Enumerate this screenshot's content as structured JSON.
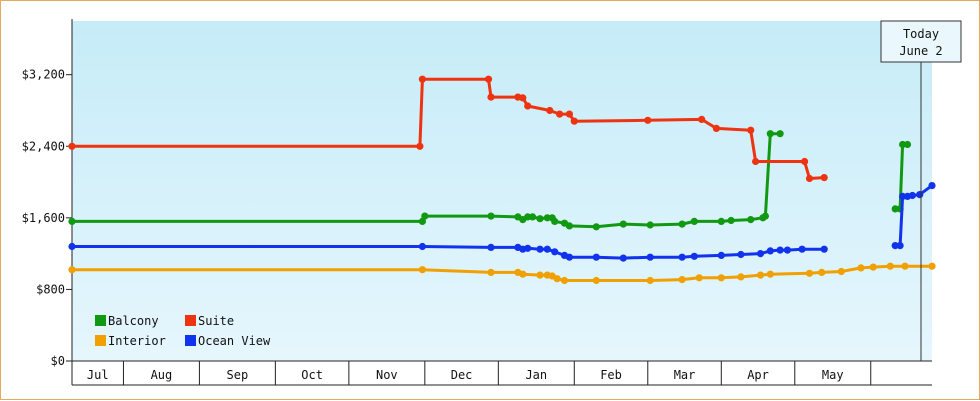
{
  "chart_data": {
    "type": "line",
    "title": "",
    "xlabel": "",
    "ylabel": "",
    "ylim": [
      0,
      3800
    ],
    "xlim": [
      "2023-06-24",
      "2024-06-09"
    ],
    "y_ticks": [
      0,
      800,
      1600,
      2400,
      3200
    ],
    "y_tick_labels": [
      "$0",
      "$800",
      "$1,600",
      "$2,400",
      "$3,200"
    ],
    "x_months": [
      {
        "label": "Jul",
        "start": "2023-06-24",
        "end": "2023-07-15"
      },
      {
        "label": "Aug",
        "start": "2023-07-15",
        "end": "2023-08-15"
      },
      {
        "label": "Sep",
        "start": "2023-08-15",
        "end": "2023-09-15"
      },
      {
        "label": "Oct",
        "start": "2023-09-15",
        "end": "2023-10-15"
      },
      {
        "label": "Nov",
        "start": "2023-10-15",
        "end": "2023-11-15"
      },
      {
        "label": "Dec",
        "start": "2023-11-15",
        "end": "2023-12-15"
      },
      {
        "label": "Jan",
        "start": "2023-12-15",
        "end": "2024-01-15"
      },
      {
        "label": "Feb",
        "start": "2024-01-15",
        "end": "2024-02-14"
      },
      {
        "label": "Mar",
        "start": "2024-02-14",
        "end": "2024-03-15"
      },
      {
        "label": "Apr",
        "start": "2024-03-15",
        "end": "2024-04-14"
      },
      {
        "label": "May",
        "start": "2024-04-14",
        "end": "2024-05-15"
      },
      {
        "label": "",
        "start": "2024-05-15",
        "end": "2024-06-09"
      }
    ],
    "grid": false,
    "legend_position": "bottom-left",
    "today": {
      "line1": "Today",
      "line2": "June 2",
      "date": "2024-06-02"
    },
    "series": [
      {
        "name": "Balcony",
        "color": "#119911",
        "segments": [
          [
            [
              "2023-06-24",
              1560
            ],
            [
              "2023-11-14",
              1560
            ],
            [
              "2023-11-15",
              1620
            ],
            [
              "2023-12-12",
              1620
            ],
            [
              "2023-12-23",
              1610
            ],
            [
              "2023-12-25",
              1580
            ],
            [
              "2023-12-27",
              1610
            ],
            [
              "2023-12-29",
              1610
            ],
            [
              "2024-01-01",
              1590
            ],
            [
              "2024-01-04",
              1600
            ],
            [
              "2024-01-06",
              1600
            ],
            [
              "2024-01-07",
              1560
            ],
            [
              "2024-01-11",
              1540
            ],
            [
              "2024-01-13",
              1510
            ],
            [
              "2024-01-24",
              1500
            ],
            [
              "2024-02-04",
              1530
            ],
            [
              "2024-02-15",
              1520
            ],
            [
              "2024-02-28",
              1530
            ],
            [
              "2024-03-04",
              1560
            ],
            [
              "2024-03-15",
              1560
            ],
            [
              "2024-03-19",
              1570
            ],
            [
              "2024-03-27",
              1580
            ],
            [
              "2024-04-01",
              1600
            ],
            [
              "2024-04-02",
              1620
            ],
            [
              "2024-04-04",
              2540
            ],
            [
              "2024-04-08",
              2540
            ]
          ],
          [
            [
              "2024-05-25",
              1700
            ],
            [
              "2024-05-27",
              1700
            ],
            [
              "2024-05-28",
              2420
            ],
            [
              "2024-05-30",
              2420
            ]
          ]
        ]
      },
      {
        "name": "Suite",
        "color": "#ee3311",
        "segments": [
          [
            [
              "2023-06-24",
              2400
            ],
            [
              "2023-11-13",
              2400
            ],
            [
              "2023-11-14",
              3150
            ],
            [
              "2023-12-11",
              3150
            ],
            [
              "2023-12-12",
              2950
            ],
            [
              "2023-12-23",
              2950
            ],
            [
              "2023-12-25",
              2940
            ],
            [
              "2023-12-27",
              2850
            ],
            [
              "2024-01-05",
              2800
            ],
            [
              "2024-01-09",
              2760
            ],
            [
              "2024-01-13",
              2760
            ],
            [
              "2024-01-15",
              2680
            ],
            [
              "2024-02-14",
              2690
            ],
            [
              "2024-03-07",
              2700
            ],
            [
              "2024-03-13",
              2600
            ],
            [
              "2024-03-27",
              2580
            ],
            [
              "2024-03-29",
              2230
            ],
            [
              "2024-04-18",
              2230
            ],
            [
              "2024-04-20",
              2040
            ],
            [
              "2024-04-26",
              2050
            ]
          ]
        ]
      },
      {
        "name": "Interior",
        "color": "#f0a000",
        "segments": [
          [
            [
              "2023-06-24",
              1020
            ],
            [
              "2023-11-14",
              1020
            ],
            [
              "2023-12-12",
              990
            ],
            [
              "2023-12-23",
              990
            ],
            [
              "2023-12-25",
              970
            ],
            [
              "2024-01-01",
              960
            ],
            [
              "2024-01-04",
              960
            ],
            [
              "2024-01-06",
              950
            ],
            [
              "2024-01-08",
              920
            ],
            [
              "2024-01-11",
              900
            ],
            [
              "2024-01-24",
              900
            ],
            [
              "2024-02-15",
              900
            ],
            [
              "2024-02-28",
              910
            ],
            [
              "2024-03-06",
              930
            ],
            [
              "2024-03-15",
              930
            ],
            [
              "2024-03-23",
              940
            ],
            [
              "2024-03-31",
              960
            ],
            [
              "2024-04-04",
              970
            ],
            [
              "2024-04-20",
              980
            ],
            [
              "2024-04-25",
              990
            ],
            [
              "2024-05-03",
              1000
            ],
            [
              "2024-05-11",
              1040
            ],
            [
              "2024-05-16",
              1050
            ],
            [
              "2024-05-23",
              1060
            ],
            [
              "2024-05-29",
              1060
            ],
            [
              "2024-06-09",
              1060
            ]
          ]
        ]
      },
      {
        "name": "Ocean View",
        "color": "#1133ee",
        "segments": [
          [
            [
              "2023-06-24",
              1280
            ],
            [
              "2023-11-14",
              1280
            ],
            [
              "2023-12-12",
              1270
            ],
            [
              "2023-12-23",
              1270
            ],
            [
              "2023-12-25",
              1250
            ],
            [
              "2023-12-27",
              1260
            ],
            [
              "2024-01-01",
              1250
            ],
            [
              "2024-01-04",
              1250
            ],
            [
              "2024-01-07",
              1220
            ],
            [
              "2024-01-11",
              1180
            ],
            [
              "2024-01-13",
              1160
            ],
            [
              "2024-01-24",
              1160
            ],
            [
              "2024-02-04",
              1150
            ],
            [
              "2024-02-15",
              1160
            ],
            [
              "2024-02-28",
              1160
            ],
            [
              "2024-03-04",
              1170
            ],
            [
              "2024-03-15",
              1180
            ],
            [
              "2024-03-23",
              1190
            ],
            [
              "2024-03-31",
              1200
            ],
            [
              "2024-04-04",
              1230
            ],
            [
              "2024-04-08",
              1240
            ],
            [
              "2024-04-11",
              1240
            ],
            [
              "2024-04-17",
              1250
            ],
            [
              "2024-04-26",
              1250
            ]
          ],
          [
            [
              "2024-05-25",
              1290
            ],
            [
              "2024-05-27",
              1290
            ],
            [
              "2024-05-28",
              1840
            ],
            [
              "2024-05-30",
              1840
            ],
            [
              "2024-06-01",
              1850
            ],
            [
              "2024-06-04",
              1860
            ],
            [
              "2024-06-09",
              1960
            ]
          ]
        ]
      }
    ]
  }
}
